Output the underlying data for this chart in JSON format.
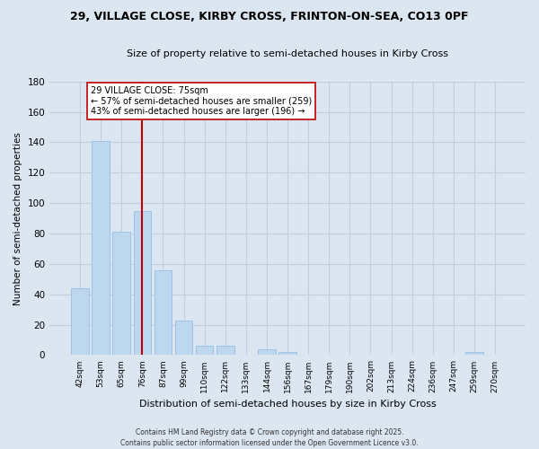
{
  "title_line1": "29, VILLAGE CLOSE, KIRBY CROSS, FRINTON-ON-SEA, CO13 0PF",
  "title_line2": "Size of property relative to semi-detached houses in Kirby Cross",
  "bar_labels": [
    "42sqm",
    "53sqm",
    "65sqm",
    "76sqm",
    "87sqm",
    "99sqm",
    "110sqm",
    "122sqm",
    "133sqm",
    "144sqm",
    "156sqm",
    "167sqm",
    "179sqm",
    "190sqm",
    "202sqm",
    "213sqm",
    "224sqm",
    "236sqm",
    "247sqm",
    "259sqm",
    "270sqm"
  ],
  "bar_values": [
    44,
    141,
    81,
    95,
    56,
    23,
    6,
    6,
    0,
    4,
    2,
    0,
    0,
    0,
    0,
    0,
    0,
    0,
    0,
    2,
    0
  ],
  "bar_color": "#bdd7ee",
  "bar_edge_color": "#9dc3e6",
  "vline_color": "#c00000",
  "ylabel": "Number of semi-detached properties",
  "xlabel": "Distribution of semi-detached houses by size in Kirby Cross",
  "ylim": [
    0,
    180
  ],
  "yticks": [
    0,
    20,
    40,
    60,
    80,
    100,
    120,
    140,
    160,
    180
  ],
  "annotation_title": "29 VILLAGE CLOSE: 75sqm",
  "annotation_line1": "← 57% of semi-detached houses are smaller (259)",
  "annotation_line2": "43% of semi-detached houses are larger (196) →",
  "annotation_box_color": "#ffffff",
  "annotation_box_edge": "#c00000",
  "footer_line1": "Contains HM Land Registry data © Crown copyright and database right 2025.",
  "footer_line2": "Contains public sector information licensed under the Open Government Licence v3.0.",
  "bg_color": "#dce6f1",
  "plot_bg_color": "#dce6f1",
  "grid_color": "#c0cfe0"
}
